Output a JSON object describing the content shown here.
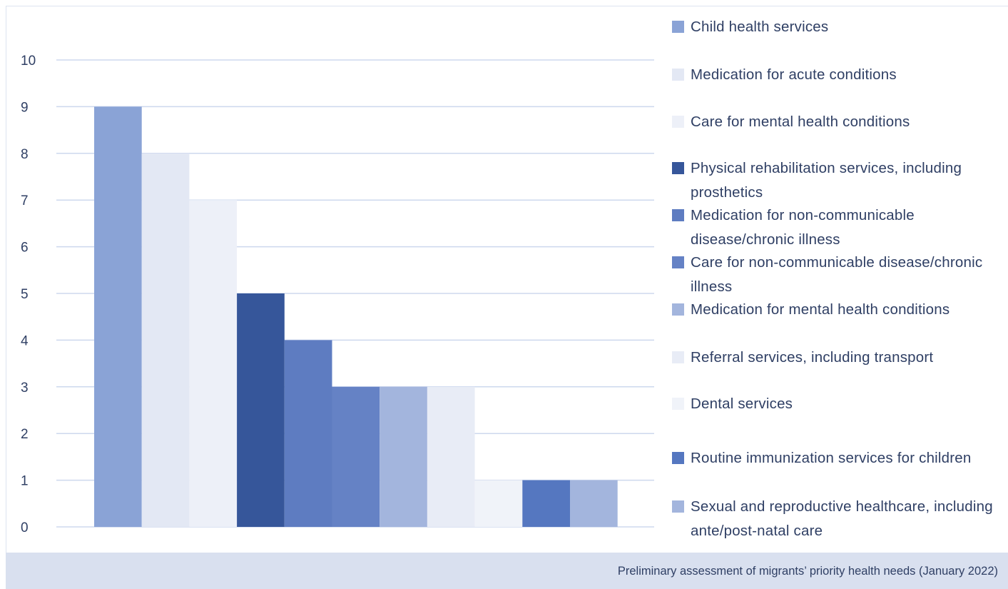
{
  "chart_data": {
    "type": "bar",
    "title": "",
    "xlabel": "",
    "ylabel": "",
    "ylim": [
      0,
      10
    ],
    "yticks": [
      0,
      1,
      2,
      3,
      4,
      5,
      6,
      7,
      8,
      9,
      10
    ],
    "grid": true,
    "legend_position": "right",
    "series": [
      {
        "name": "Child health services",
        "value": 9,
        "color": "#8aa3d6"
      },
      {
        "name": "Medication for acute conditions",
        "value": 8,
        "color": "#e3e8f4"
      },
      {
        "name": "Care for mental health conditions",
        "value": 7,
        "color": "#edf0f8"
      },
      {
        "name": "Physical rehabilitation services, including prosthetics",
        "value": 5,
        "color": "#36569a"
      },
      {
        "name": "Medication for non-communicable disease/chronic illness",
        "value": 4,
        "color": "#5e7cc1"
      },
      {
        "name": "Care for non-communicable disease/chronic illness",
        "value": 3,
        "color": "#6582c5"
      },
      {
        "name": "Medication for mental health conditions",
        "value": 3,
        "color": "#a3b5dd"
      },
      {
        "name": "Referral services, including transport",
        "value": 3,
        "color": "#e8ecf6"
      },
      {
        "name": "Dental services",
        "value": 1,
        "color": "#f0f3f9"
      },
      {
        "name": "Routine immunization services for children",
        "value": 1,
        "color": "#5577c0"
      },
      {
        "name": "Sexual and reproductive healthcare, including ante/post-natal care",
        "value": 1,
        "color": "#a3b5dd"
      }
    ]
  },
  "caption": "Preliminary assessment of migrants’ priority health needs (January 2022)"
}
